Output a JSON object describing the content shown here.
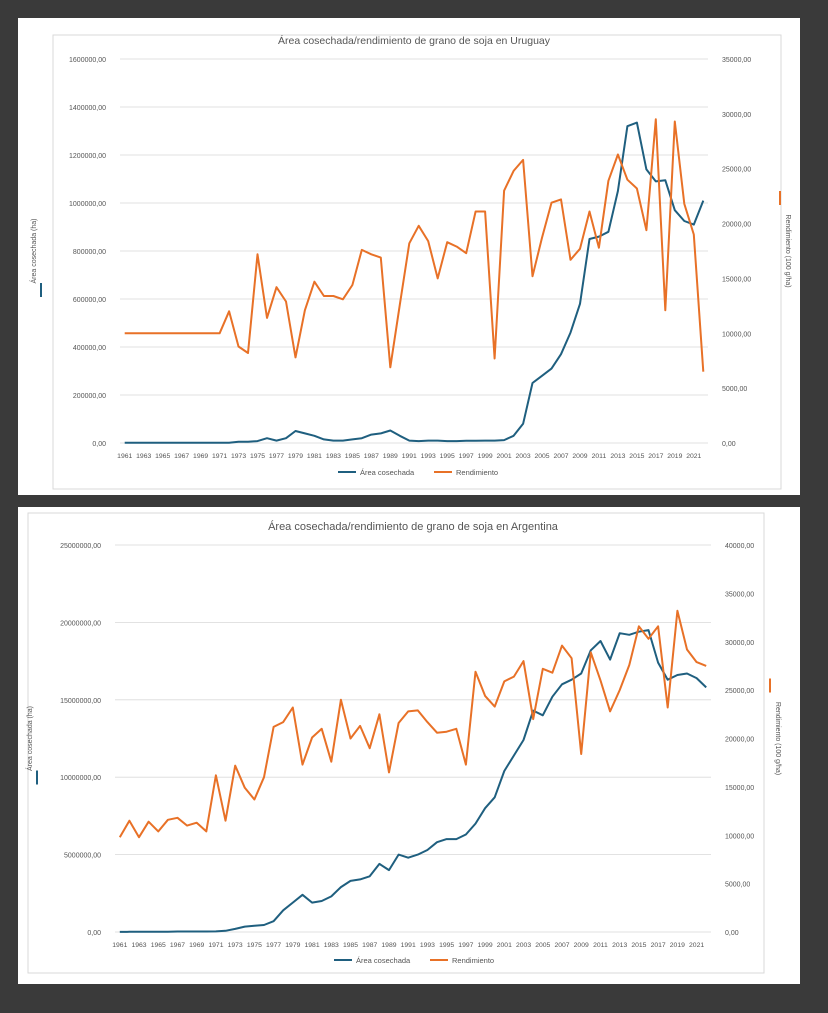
{
  "colors": {
    "area": "#1f5f7f",
    "yield": "#e87127",
    "background": "#3a3a3a",
    "gridline": "#d9d9d9",
    "text": "#595959"
  },
  "chart_data": [
    {
      "type": "line",
      "title": "Área cosechada/rendimiento de grano de soja en Uruguay",
      "xlabel": "",
      "ylabel": "Área cosechada (ha)",
      "y2label": "Rendimiento (100 g/ha)",
      "ylim": [
        0,
        1600000
      ],
      "y2lim": [
        0,
        35000
      ],
      "y_ticks": [
        "0,00",
        "200000,00",
        "400000,00",
        "600000,00",
        "800000,00",
        "1000000,00",
        "1200000,00",
        "1400000,00",
        "1600000,00"
      ],
      "y2_ticks": [
        "0,00",
        "5000,00",
        "10000,00",
        "15000,00",
        "20000,00",
        "25000,00",
        "30000,00",
        "35000,00"
      ],
      "x_ticks": [
        "1961",
        "1963",
        "1965",
        "1967",
        "1969",
        "1971",
        "1973",
        "1975",
        "1977",
        "1979",
        "1981",
        "1983",
        "1985",
        "1987",
        "1989",
        "1991",
        "1993",
        "1995",
        "1997",
        "1999",
        "2001",
        "2003",
        "2005",
        "2007",
        "2009",
        "2011",
        "2013",
        "2015",
        "2017",
        "2019",
        "2021"
      ],
      "x_start": 1961,
      "grid": true,
      "legend": "bottom",
      "series": [
        {
          "name": "Área cosechada",
          "axis": "left",
          "values": [
            1000,
            1000,
            1000,
            1000,
            1000,
            1000,
            1000,
            1000,
            1000,
            1000,
            1000,
            1000,
            5000,
            5000,
            8000,
            20000,
            10000,
            20000,
            50000,
            40000,
            30000,
            15000,
            10000,
            10000,
            15000,
            20000,
            35000,
            40000,
            52000,
            30000,
            10000,
            8000,
            10000,
            10000,
            8000,
            8000,
            9000,
            9000,
            10000,
            10000,
            12000,
            30000,
            80000,
            250000,
            280000,
            310000,
            370000,
            460000,
            580000,
            850000,
            860000,
            880000,
            1050000,
            1320000,
            1335000,
            1140000,
            1090000,
            1095000,
            970000,
            925000,
            910000,
            1010000
          ]
        },
        {
          "name": "Rendimiento",
          "axis": "right",
          "values": [
            10000,
            10000,
            10000,
            10000,
            10000,
            10000,
            10000,
            10000,
            10000,
            10000,
            10000,
            12000,
            8800,
            8200,
            17200,
            11400,
            14200,
            12900,
            7800,
            12100,
            14700,
            13400,
            13400,
            13100,
            14400,
            17600,
            17200,
            16900,
            6900,
            12600,
            18200,
            19800,
            18400,
            15000,
            18300,
            17900,
            17300,
            21100,
            21100,
            7700,
            23000,
            24800,
            25800,
            15200,
            18700,
            21900,
            22200,
            16700,
            17700,
            21100,
            17800,
            23900,
            26300,
            24000,
            23200,
            19400,
            29500,
            12100,
            29300,
            21800,
            19000,
            6500
          ]
        }
      ]
    },
    {
      "type": "line",
      "title": "Área cosechada/rendimiento de grano de soja en Argentina",
      "xlabel": "",
      "ylabel": "Área cosechada (ha)",
      "y2label": "Rendimiento (100 g/ha)",
      "ylim": [
        0,
        25000000
      ],
      "y2lim": [
        0,
        40000
      ],
      "y_ticks": [
        "0,00",
        "5000000,00",
        "10000000,00",
        "15000000,00",
        "20000000,00",
        "25000000,00"
      ],
      "y2_ticks": [
        "0,00",
        "5000,00",
        "10000,00",
        "15000,00",
        "20000,00",
        "25000,00",
        "30000,00",
        "35000,00",
        "40000,00"
      ],
      "x_ticks": [
        "1961",
        "1963",
        "1965",
        "1967",
        "1969",
        "1971",
        "1973",
        "1975",
        "1977",
        "1979",
        "1981",
        "1983",
        "1985",
        "1987",
        "1989",
        "1991",
        "1993",
        "1995",
        "1997",
        "1999",
        "2001",
        "2003",
        "2005",
        "2007",
        "2009",
        "2011",
        "2013",
        "2015",
        "2017",
        "2019",
        "2021"
      ],
      "x_start": 1961,
      "grid": true,
      "legend": "bottom",
      "series": [
        {
          "name": "Área cosechada",
          "axis": "left",
          "values": [
            5000,
            10000,
            20000,
            15000,
            15000,
            20000,
            30000,
            30000,
            30000,
            30000,
            40000,
            80000,
            200000,
            350000,
            400000,
            450000,
            700000,
            1400000,
            1900000,
            2400000,
            1900000,
            2000000,
            2300000,
            2900000,
            3300000,
            3400000,
            3600000,
            4400000,
            4000000,
            5000000,
            4800000,
            5000000,
            5300000,
            5800000,
            6000000,
            6000000,
            6300000,
            7000000,
            8000000,
            8700000,
            10400000,
            11400000,
            12400000,
            14300000,
            14000000,
            15200000,
            16000000,
            16300000,
            16700000,
            18200000,
            18800000,
            17600000,
            19300000,
            19200000,
            19400000,
            19500000,
            17400000,
            16300000,
            16600000,
            16700000,
            16400000,
            15800000
          ]
        },
        {
          "name": "Rendimiento",
          "axis": "right",
          "values": [
            9800,
            11500,
            9800,
            11400,
            10400,
            11600,
            11800,
            11000,
            11300,
            10400,
            16200,
            11500,
            17200,
            14900,
            13700,
            16000,
            21200,
            21700,
            23200,
            17300,
            20100,
            21000,
            17600,
            24000,
            20000,
            21300,
            19000,
            22500,
            16500,
            21600,
            22800,
            22900,
            21700,
            20600,
            20700,
            21000,
            17300,
            26900,
            24400,
            23300,
            25900,
            26400,
            28000,
            22000,
            27200,
            26800,
            29600,
            28300,
            18400,
            28900,
            26000,
            22800,
            25000,
            27600,
            31600,
            30300,
            31600,
            23200,
            33200,
            29200,
            27900,
            27500
          ]
        }
      ]
    }
  ]
}
